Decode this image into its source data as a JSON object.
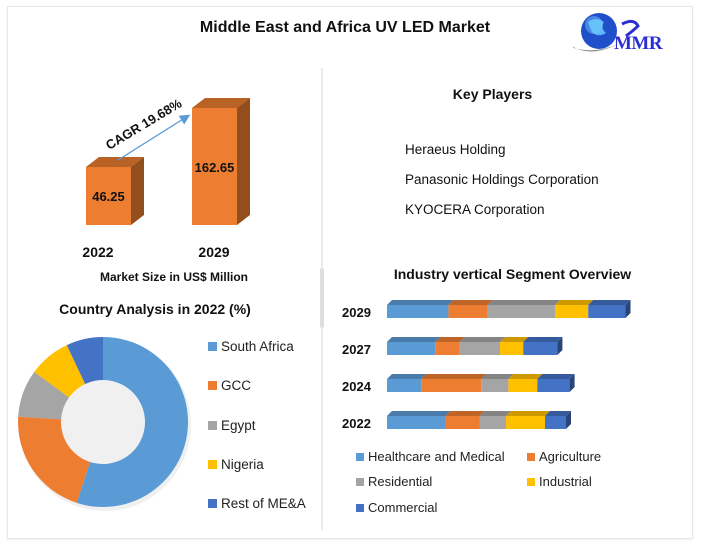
{
  "title": "Middle East and Africa UV LED Market",
  "logo": {
    "text": "MMR",
    "icon": "globe-icon"
  },
  "key_players": {
    "title": "Key Players",
    "items": [
      "Heraeus Holding",
      "Panasonic Holdings Corporation",
      "KYOCERA Corporation"
    ]
  },
  "chart_data": [
    {
      "type": "bar",
      "title": "",
      "xlabel": "Market Size in US$ Million",
      "ylabel": "",
      "categories": [
        "2022",
        "2029"
      ],
      "values": [
        46.25,
        162.65
      ],
      "data_labels": [
        "46.25",
        "162.65"
      ],
      "annotation": "CAGR 19.68%",
      "color": "#ED7D31",
      "style": "3d-column",
      "grid": false
    },
    {
      "type": "pie",
      "subtype": "donut",
      "title": "Country Analysis in 2022 (%)",
      "labels": [
        "South Africa",
        "GCC",
        "Egypt",
        "Nigeria",
        "Rest of ME&A"
      ],
      "values": [
        55,
        21,
        9,
        8,
        7
      ],
      "colors": [
        "#5B9BD5",
        "#ED7D31",
        "#A5A5A5",
        "#FFC000",
        "#4472C4"
      ],
      "legend": "right"
    },
    {
      "type": "bar",
      "orientation": "horizontal",
      "stacked": true,
      "title": "Industry vertical Segment Overview",
      "categories": [
        "2029",
        "2027",
        "2024",
        "2022"
      ],
      "series": [
        {
          "name": "Healthcare and Medical",
          "color": "#5B9BD5",
          "values": [
            25.7,
            20.2,
            14.3,
            24.5
          ]
        },
        {
          "name": "Agriculture",
          "color": "#ED7D31",
          "values": [
            16.4,
            10.1,
            25.1,
            14.2
          ]
        },
        {
          "name": "Residential",
          "color": "#A5A5A5",
          "values": [
            28.2,
            17.0,
            11.4,
            11.1
          ]
        },
        {
          "name": "Industrial",
          "color": "#FFC000",
          "values": [
            13.9,
            9.7,
            12.1,
            16.3
          ]
        },
        {
          "name": "Commercial",
          "color": "#4472C4",
          "values": [
            15.6,
            14.3,
            13.5,
            8.8
          ]
        }
      ],
      "value_units": "relative share (no axis shown)",
      "legend": "bottom",
      "grid": false
    }
  ]
}
